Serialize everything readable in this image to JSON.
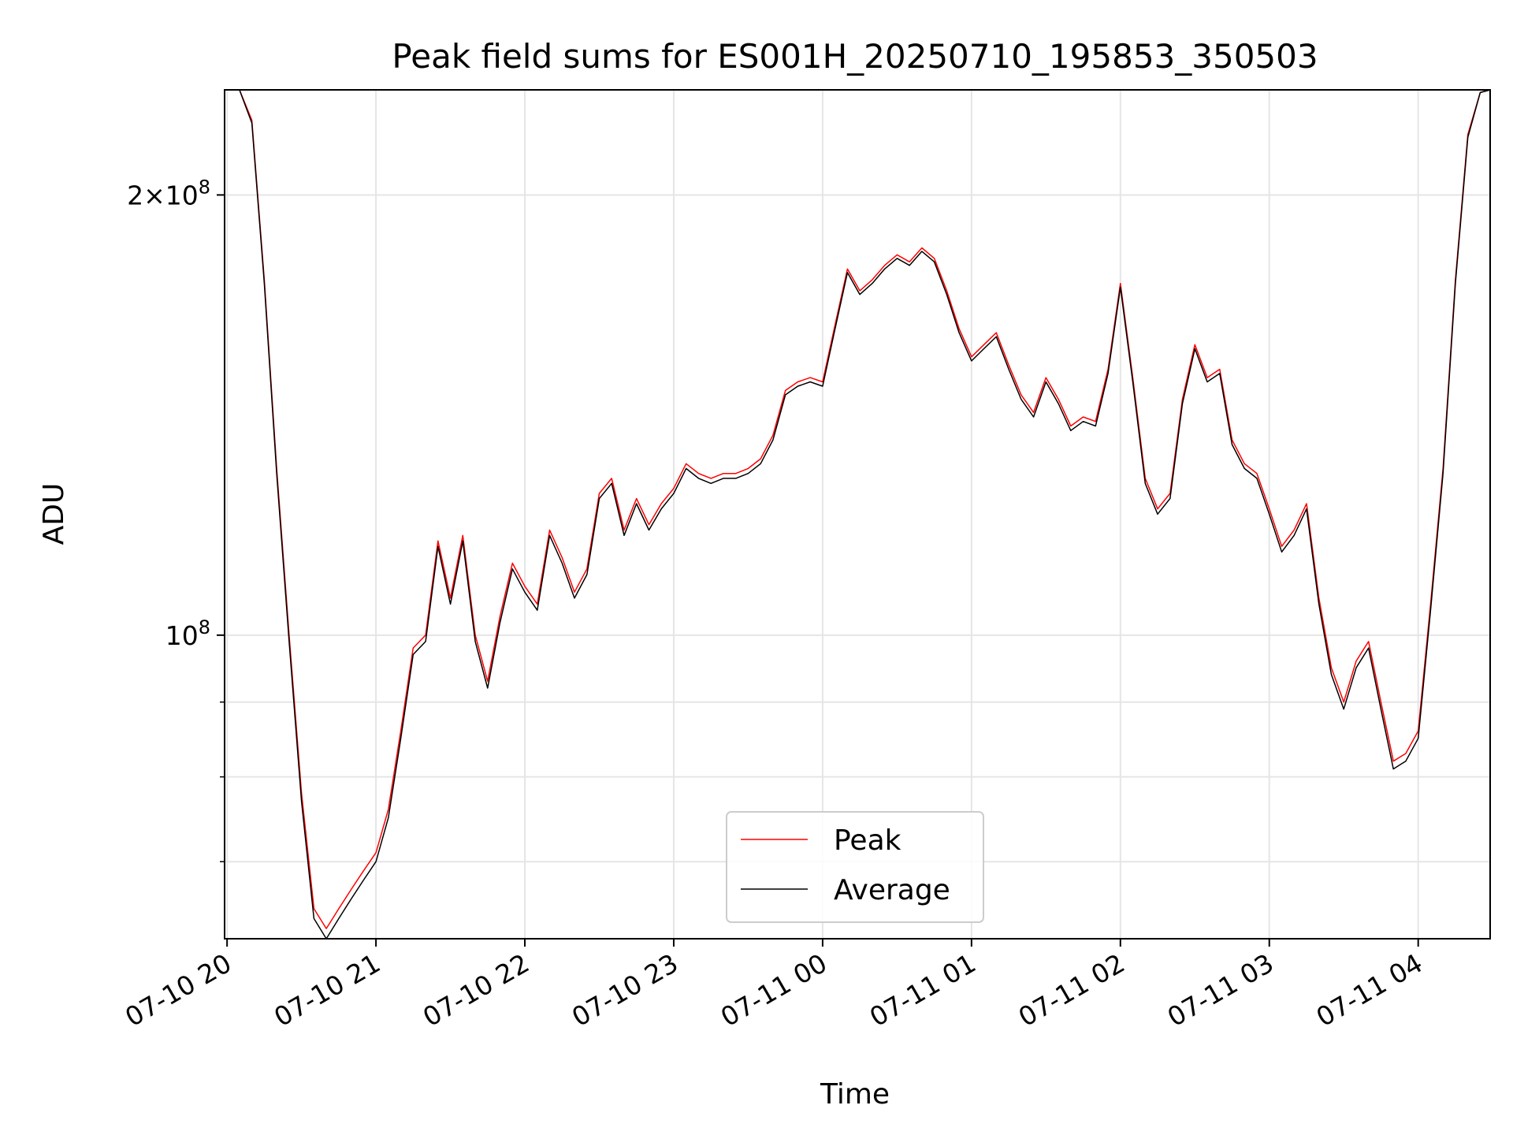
{
  "chart_data": {
    "type": "line",
    "title": "Peak field sums for ES001H_20250710_195853_350503",
    "xlabel": "Time",
    "ylabel": "ADU",
    "x_range": [
      "2025-07-10T19:59",
      "2025-07-11T04:29"
    ],
    "x_ticks": [
      "07-10 20",
      "07-10 21",
      "07-10 22",
      "07-10 23",
      "07-11 00",
      "07-11 01",
      "07-11 02",
      "07-11 03",
      "07-11 04"
    ],
    "y_scale": "log",
    "ylim": [
      62000000,
      236000000
    ],
    "y_major_ticks": [
      {
        "value": 100000000,
        "base": "10",
        "exp": "8"
      },
      {
        "value": 200000000,
        "mant": "2",
        "base": "10",
        "exp": "8"
      }
    ],
    "y_minor_ticks": [
      70000000,
      80000000,
      90000000,
      300000000
    ],
    "grid": true,
    "legend": {
      "position": "lower-center",
      "entries": [
        "Peak",
        "Average"
      ]
    },
    "colors": {
      "Peak": "#ff0000",
      "Average": "#000000",
      "grid": "#e5e5e5"
    },
    "x": [
      "19:59",
      "20:05",
      "20:10",
      "20:15",
      "20:20",
      "20:25",
      "20:30",
      "20:35",
      "20:40",
      "20:45",
      "20:50",
      "20:55",
      "21:00",
      "21:05",
      "21:10",
      "21:15",
      "21:20",
      "21:25",
      "21:30",
      "21:35",
      "21:40",
      "21:45",
      "21:50",
      "21:55",
      "22:00",
      "22:05",
      "22:10",
      "22:15",
      "22:20",
      "22:25",
      "22:30",
      "22:35",
      "22:40",
      "22:45",
      "22:50",
      "22:55",
      "23:00",
      "23:05",
      "23:10",
      "23:15",
      "23:20",
      "23:25",
      "23:30",
      "23:35",
      "23:40",
      "23:45",
      "23:50",
      "23:55",
      "00:00",
      "00:05",
      "00:10",
      "00:15",
      "00:20",
      "00:25",
      "00:30",
      "00:35",
      "00:40",
      "00:45",
      "00:50",
      "00:55",
      "01:00",
      "01:05",
      "01:10",
      "01:15",
      "01:20",
      "01:25",
      "01:30",
      "01:35",
      "01:40",
      "01:45",
      "01:50",
      "01:55",
      "02:00",
      "02:05",
      "02:10",
      "02:15",
      "02:20",
      "02:25",
      "02:30",
      "02:35",
      "02:40",
      "02:45",
      "02:50",
      "02:55",
      "03:00",
      "03:05",
      "03:10",
      "03:15",
      "03:20",
      "03:25",
      "03:30",
      "03:35",
      "03:40",
      "03:45",
      "03:50",
      "03:55",
      "04:00",
      "04:05",
      "04:10",
      "04:15",
      "04:20",
      "04:25",
      "04:29"
    ],
    "series": [
      {
        "name": "Peak",
        "values": [
          236,
          236,
          225,
          175,
          130,
          100,
          78,
          65,
          63,
          65,
          67,
          69,
          71,
          76,
          86,
          98,
          100,
          116,
          106,
          117,
          100,
          93,
          103,
          112,
          108,
          105,
          118,
          113,
          107,
          111,
          125,
          128,
          118,
          124,
          119,
          123,
          126,
          131,
          129,
          128,
          129,
          129,
          130,
          132,
          137,
          147,
          149,
          150,
          149,
          163,
          178,
          172,
          175,
          179,
          182,
          180,
          184,
          181,
          172,
          162,
          155,
          158,
          161,
          153,
          146,
          142,
          150,
          145,
          139,
          141,
          140,
          152,
          174,
          150,
          128,
          122,
          125,
          145,
          158,
          150,
          152,
          136,
          131,
          129,
          122,
          115,
          118,
          123,
          106,
          95,
          90,
          96,
          99,
          90,
          82,
          83,
          86,
          105,
          130,
          175,
          220,
          235,
          236
        ]
      },
      {
        "name": "Average",
        "values": [
          236,
          236,
          224,
          174,
          129,
          99,
          77,
          64,
          62,
          64,
          66,
          68,
          70,
          75,
          85,
          97,
          99,
          115,
          105,
          116,
          99,
          92,
          102,
          111,
          107,
          104,
          117,
          112,
          106,
          110,
          124,
          127,
          117,
          123,
          118,
          122,
          125,
          130,
          128,
          127,
          128,
          128,
          129,
          131,
          136,
          146,
          148,
          149,
          148,
          162,
          177,
          171,
          174,
          178,
          181,
          179,
          183,
          180,
          171,
          161,
          154,
          157,
          160,
          152,
          145,
          141,
          149,
          144,
          138,
          140,
          139,
          151,
          173,
          149,
          127,
          121,
          124,
          144,
          157,
          149,
          151,
          135,
          130,
          128,
          121,
          114,
          117,
          122,
          105,
          94,
          89,
          95,
          98,
          89,
          81,
          82,
          85,
          104,
          129,
          174,
          219,
          235,
          236
        ]
      }
    ],
    "value_unit_multiplier": 1000000
  }
}
